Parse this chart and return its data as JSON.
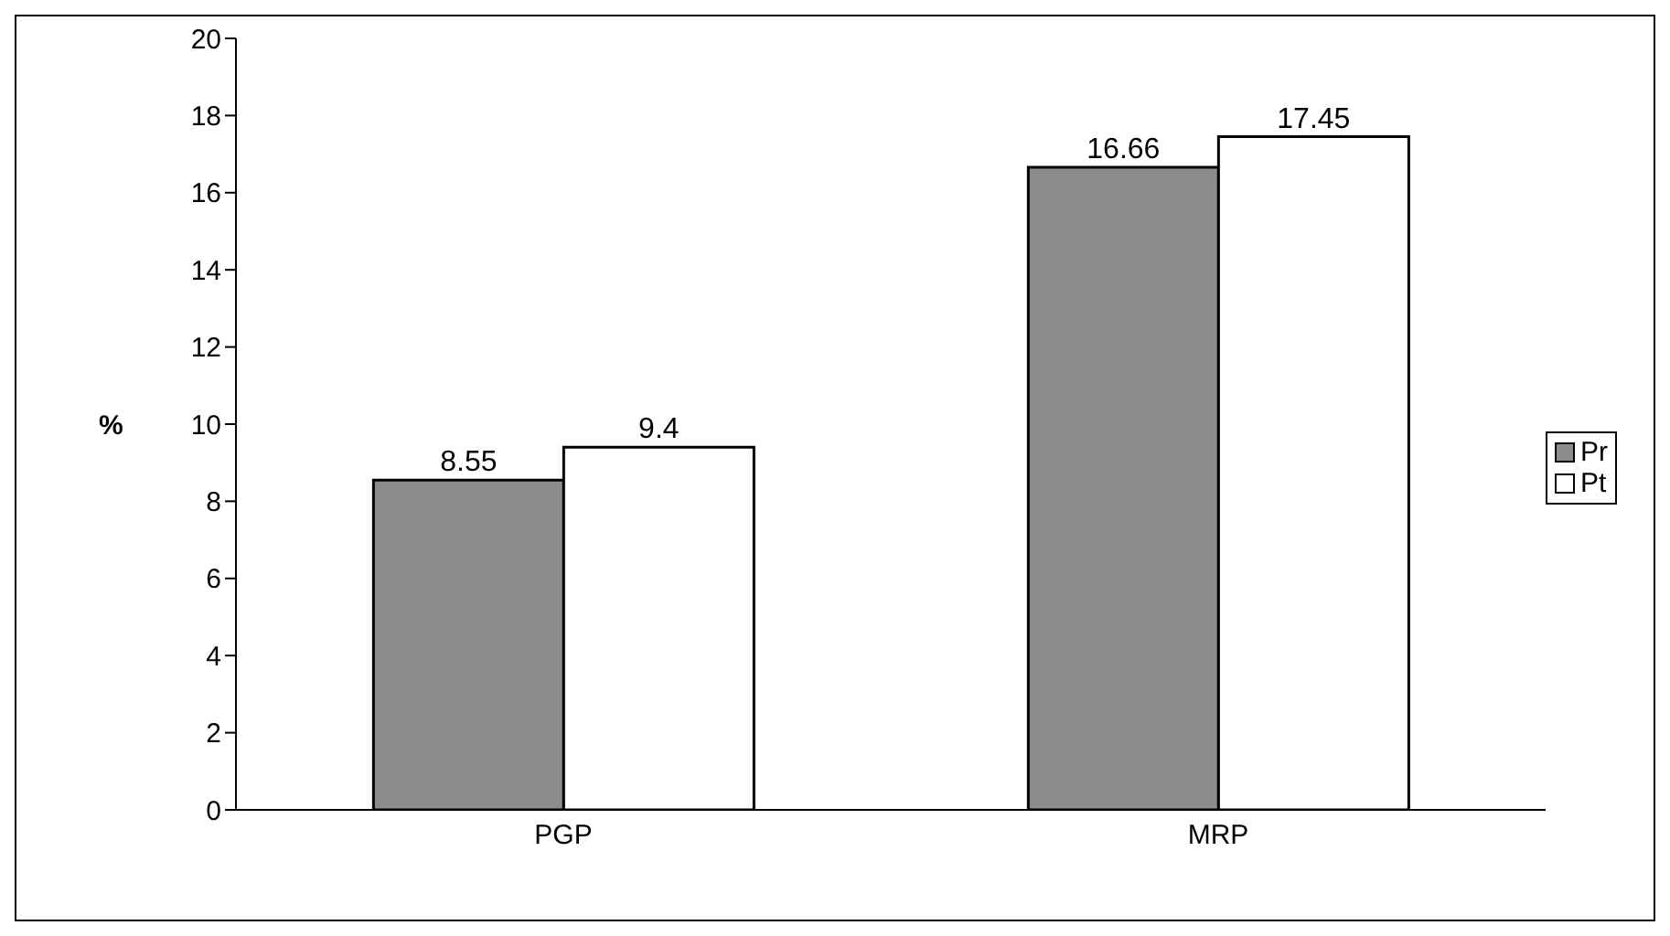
{
  "chart_data": {
    "type": "bar",
    "ylabel": "%",
    "categories": [
      "PGP",
      "MRP"
    ],
    "series": [
      {
        "name": "Pr",
        "color": "#8c8c8c",
        "values": [
          8.55,
          16.66
        ]
      },
      {
        "name": "Pt",
        "color": "#ffffff",
        "values": [
          9.4,
          17.45
        ]
      }
    ],
    "ylim": [
      0,
      20
    ],
    "yticks": [
      0,
      2,
      4,
      6,
      8,
      10,
      12,
      14,
      16,
      18,
      20
    ],
    "data_labels": true,
    "legend": "right",
    "grid": false
  }
}
